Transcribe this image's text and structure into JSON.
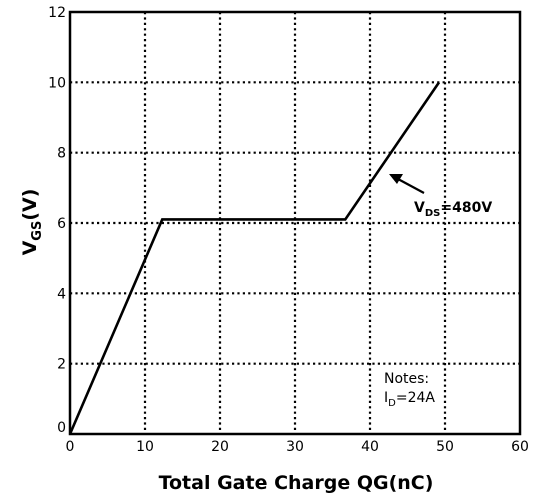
{
  "chart_data": {
    "type": "line",
    "xlabel": "Total Gate Charge QG(nC)",
    "ylabel": {
      "main": "V",
      "sub": "GS",
      "tail": "(V)"
    },
    "xlim": [
      0,
      60
    ],
    "ylim": [
      0,
      12
    ],
    "x_ticks": [
      0,
      10,
      20,
      30,
      40,
      50,
      60
    ],
    "y_ticks": [
      0,
      2,
      4,
      6,
      8,
      10,
      12
    ],
    "grid": "dotted",
    "series": [
      {
        "x": [
          0,
          12.3,
          36.7,
          49.2
        ],
        "y": [
          0,
          6.1,
          6.1,
          10.0
        ]
      }
    ],
    "annotations": {
      "vds": {
        "main": "V",
        "sub": "DS",
        "tail": "=480V"
      },
      "notes_title": "Notes:",
      "id": {
        "main": "I",
        "sub": "D",
        "tail": "=24A"
      }
    }
  }
}
